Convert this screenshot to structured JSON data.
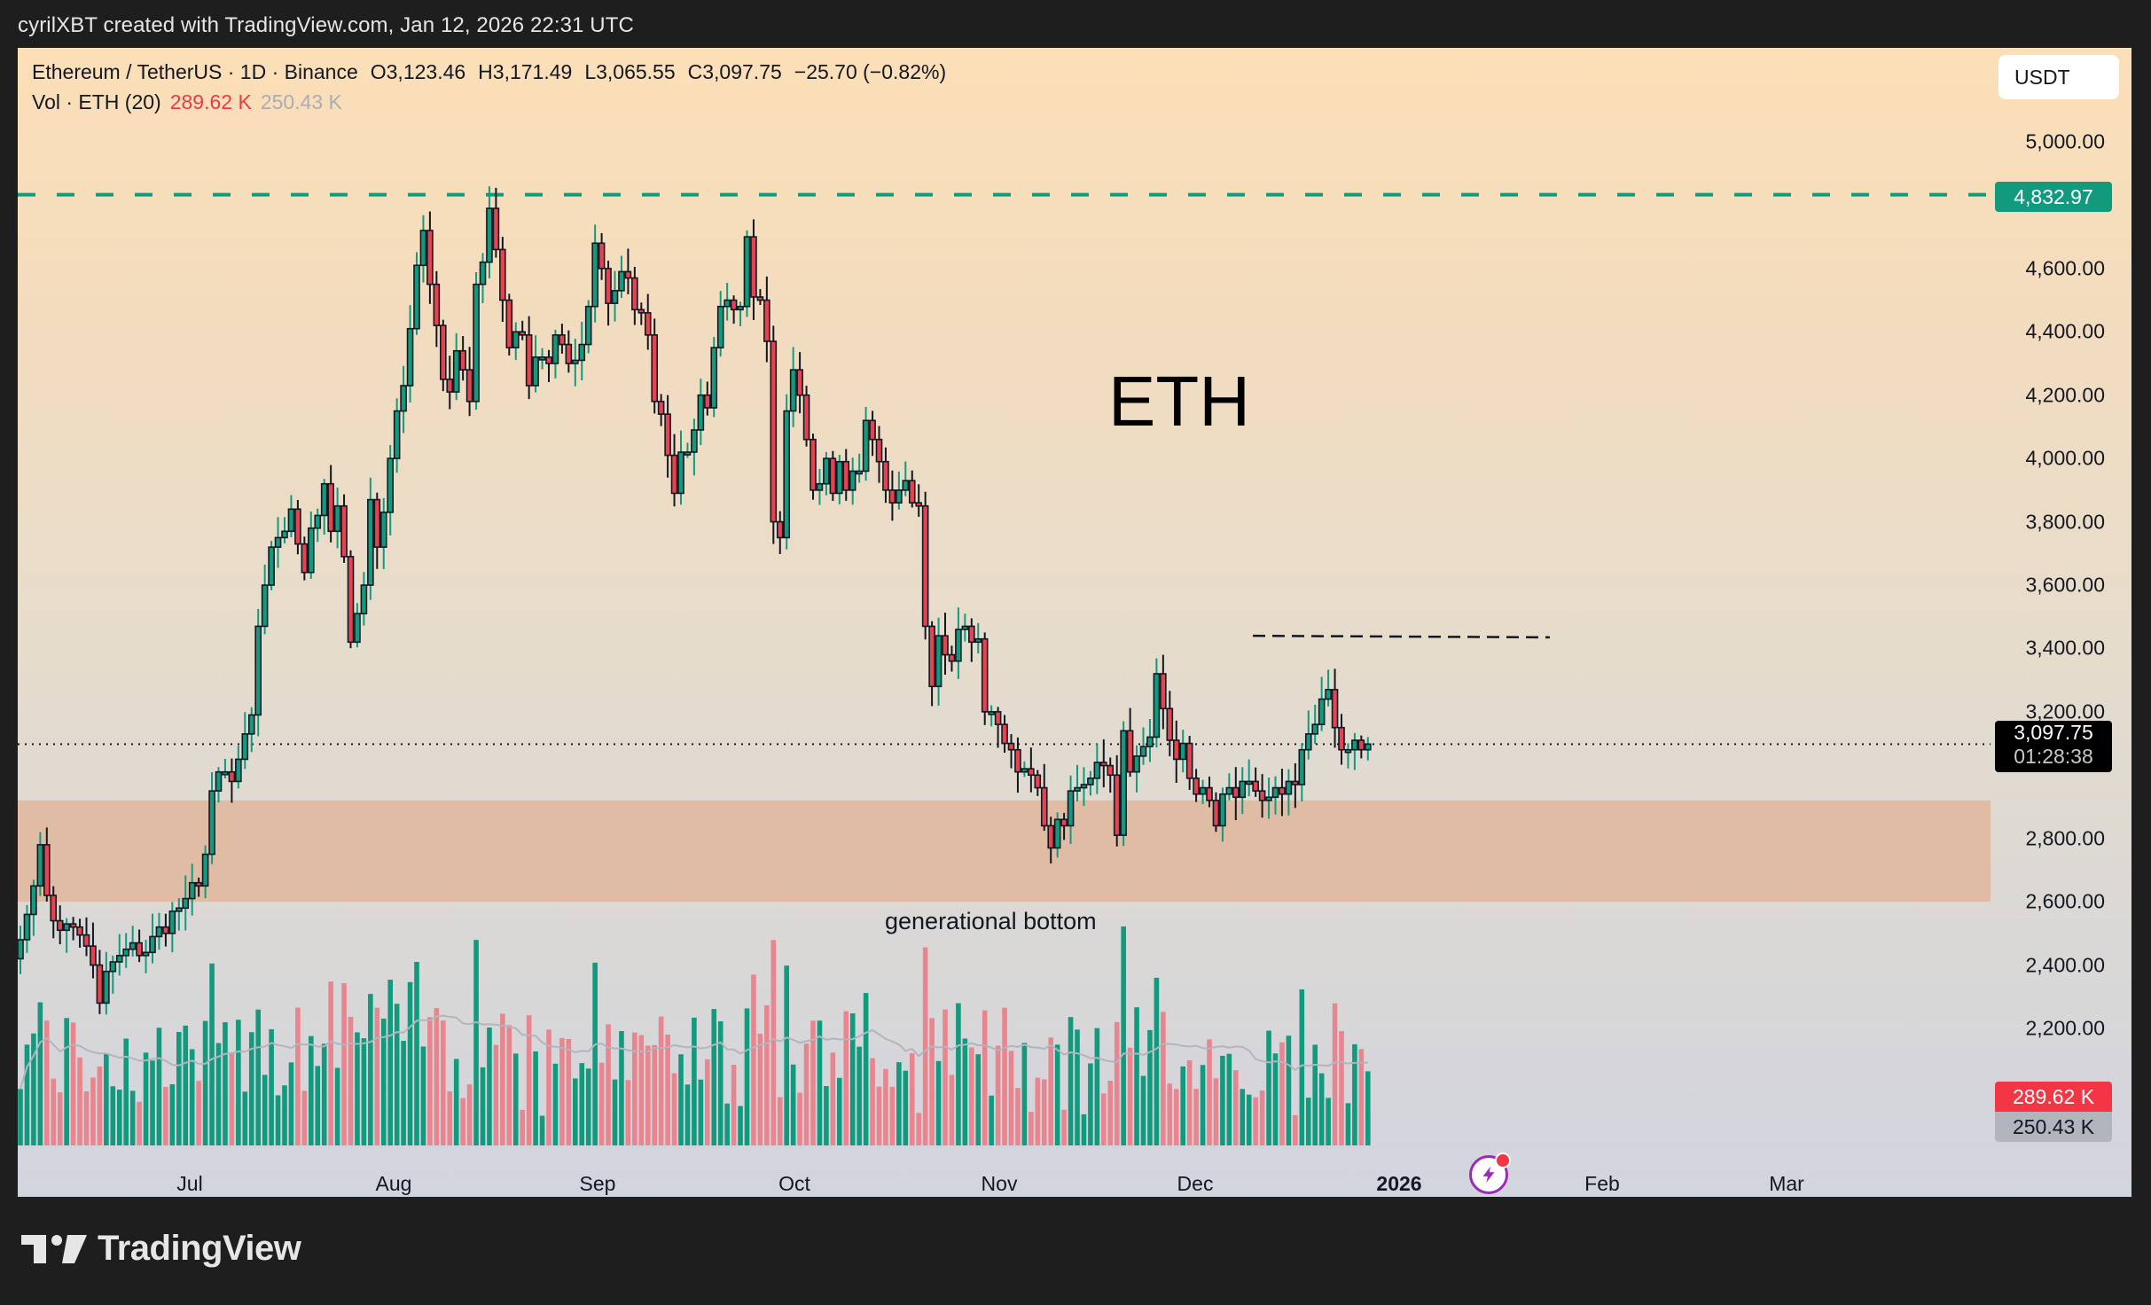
{
  "topbar": {
    "caption": "cyrilXBT created with TradingView.com, Jan 12, 2026 22:31 UTC"
  },
  "legend": {
    "symbol": "Ethereum / TetherUS · 1D · Binance",
    "open": "O3,123.46",
    "high": "H3,171.49",
    "low": "L3,065.55",
    "close": "C3,097.75",
    "change": "−25.70 (−0.82%)",
    "volume_label": "Vol · ETH (20)",
    "volume_value": "289.62 K",
    "volume_ma": "250.43 K"
  },
  "currency_button": {
    "label": "USDT"
  },
  "price_axis": {
    "ticks": [
      "5,000.00",
      "4,600.00",
      "4,400.00",
      "4,200.00",
      "4,000.00",
      "3,800.00",
      "3,600.00",
      "3,400.00",
      "3,200.00",
      "2,800.00",
      "2,600.00",
      "2,400.00",
      "2,200.00"
    ],
    "tick_values": [
      5000,
      4600,
      4400,
      4200,
      4000,
      3800,
      3600,
      3400,
      3200,
      2800,
      2600,
      2400,
      2200
    ],
    "level_tag": "4,832.97",
    "last_price": "3,097.75",
    "countdown": "01:28:38",
    "volume_tag": "289.62 K",
    "volume_ma_tag": "250.43 K"
  },
  "time_axis": {
    "labels": [
      "Jul",
      "Aug",
      "Sep",
      "Oct",
      "Nov",
      "Dec",
      "2026",
      "Feb",
      "Mar"
    ]
  },
  "annotations": {
    "title": "ETH",
    "zone_label": "generational bottom"
  },
  "footer": {
    "brand": "TradingView"
  },
  "colors": {
    "up": "#129a7f",
    "down": "#e4434f",
    "vol_up": "#129a7f",
    "vol_down": "#e8858e",
    "zone": "#e0bca5",
    "level_line": "#129a7f",
    "resistance_line": "#131722",
    "vol_ma": "#b2b5be"
  },
  "chart_data": {
    "type": "candlestick",
    "title": "Ethereum / TetherUS · 1D · Binance",
    "xlabel": "",
    "ylabel": "USDT",
    "ylim": [
      2000,
      5200
    ],
    "x_range": [
      "2025-06-12",
      "2026-03-20"
    ],
    "horizontal_levels": [
      {
        "price": 4832.97,
        "style": "dashed",
        "color": "#129a7f"
      },
      {
        "price": 3440,
        "style": "dashed",
        "color": "#131722",
        "from": "2025-12-10",
        "to": "2026-01-25"
      },
      {
        "price": 3097.75,
        "style": "dotted",
        "color": "#131722",
        "label": "last price"
      }
    ],
    "zones": [
      {
        "from_price": 2600,
        "to_price": 2920,
        "label": "generational bottom"
      }
    ],
    "volume": {
      "last": 289.62,
      "ma20": 250.43,
      "unit": "K ETH"
    },
    "closes": [
      2480,
      2560,
      2650,
      2780,
      2620,
      2540,
      2510,
      2530,
      2520,
      2495,
      2460,
      2400,
      2280,
      2380,
      2410,
      2430,
      2450,
      2470,
      2430,
      2440,
      2490,
      2520,
      2500,
      2570,
      2580,
      2610,
      2660,
      2650,
      2750,
      2950,
      3010,
      3010,
      2980,
      3050,
      3130,
      3190,
      3470,
      3600,
      3720,
      3750,
      3770,
      3840,
      3730,
      3640,
      3780,
      3820,
      3920,
      3770,
      3850,
      3690,
      3420,
      3510,
      3600,
      3870,
      3720,
      3830,
      4000,
      4150,
      4230,
      4410,
      4610,
      4720,
      4550,
      4420,
      4250,
      4210,
      4340,
      4280,
      4180,
      4550,
      4620,
      4790,
      4660,
      4500,
      4350,
      4400,
      4390,
      4230,
      4320,
      4320,
      4300,
      4390,
      4360,
      4300,
      4310,
      4360,
      4480,
      4680,
      4600,
      4490,
      4530,
      4590,
      4570,
      4470,
      4460,
      4390,
      4180,
      4140,
      4010,
      3890,
      4020,
      4020,
      4090,
      4200,
      4160,
      4350,
      4480,
      4500,
      4470,
      4480,
      4700,
      4510,
      4500,
      4370,
      3800,
      3750,
      4150,
      4280,
      4200,
      4060,
      3900,
      3920,
      4000,
      3890,
      3990,
      3900,
      3960,
      3960,
      4120,
      4060,
      3990,
      3900,
      3860,
      3900,
      3930,
      3860,
      3850,
      3470,
      3280,
      3440,
      3380,
      3360,
      3460,
      3470,
      3420,
      3430,
      3200,
      3200,
      3160,
      3100,
      3080,
      3010,
      3020,
      3000,
      2960,
      2840,
      2770,
      2860,
      2840,
      2950,
      2960,
      2970,
      2990,
      3040,
      3030,
      3000,
      2810,
      3140,
      3010,
      3060,
      3090,
      3120,
      3320,
      3210,
      3110,
      3050,
      3100,
      2990,
      2940,
      2960,
      2920,
      2840,
      2940,
      2960,
      2930,
      2980,
      2980,
      2950,
      2920,
      2930,
      2960,
      2940,
      2980,
      2970,
      3080,
      3130,
      3160,
      3240,
      3270,
      3150,
      3080,
      3080,
      3110,
      3080,
      3098
    ]
  }
}
